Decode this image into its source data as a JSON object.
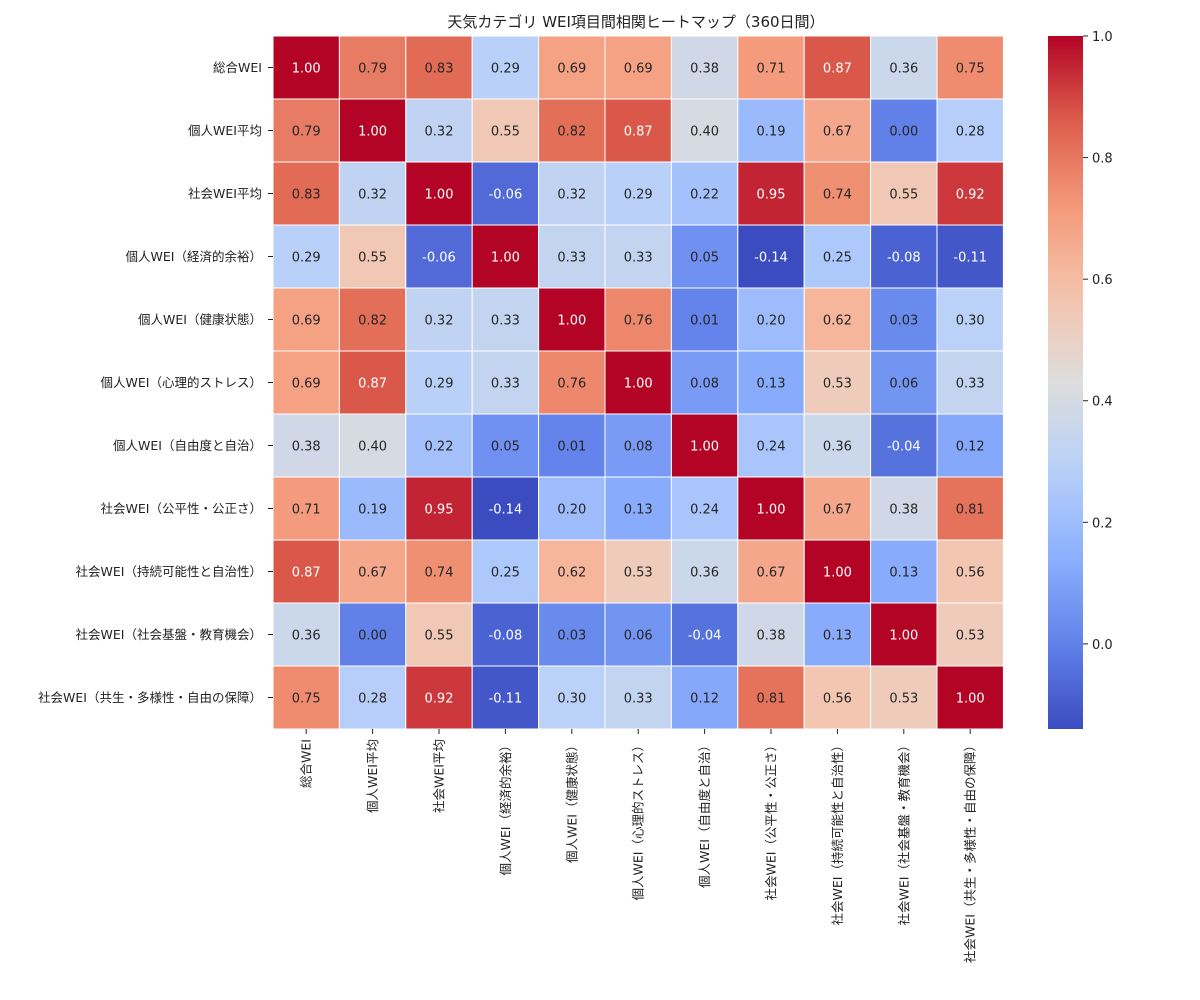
{
  "chart_data": {
    "type": "heatmap",
    "title": "天気カテゴリ WEI項目間相関ヒートマップ（360日間）",
    "labels": [
      "総合WEI",
      "個人WEI平均",
      "社会WEI平均",
      "個人WEI（経済的余裕）",
      "個人WEI（健康状態）",
      "個人WEI（心理的ストレス）",
      "個人WEI（自由度と自治）",
      "社会WEI（公平性・公正さ）",
      "社会WEI（持続可能性と自治性）",
      "社会WEI（社会基盤・教育機会）",
      "社会WEI（共生・多様性・自由の保障）"
    ],
    "matrix": [
      [
        1.0,
        0.79,
        0.83,
        0.29,
        0.69,
        0.69,
        0.38,
        0.71,
        0.87,
        0.36,
        0.75
      ],
      [
        0.79,
        1.0,
        0.32,
        0.55,
        0.82,
        0.87,
        0.4,
        0.19,
        0.67,
        0.0,
        0.28
      ],
      [
        0.83,
        0.32,
        1.0,
        -0.06,
        0.32,
        0.29,
        0.22,
        0.95,
        0.74,
        0.55,
        0.92
      ],
      [
        0.29,
        0.55,
        -0.06,
        1.0,
        0.33,
        0.33,
        0.05,
        -0.14,
        0.25,
        -0.08,
        -0.11
      ],
      [
        0.69,
        0.82,
        0.32,
        0.33,
        1.0,
        0.76,
        0.01,
        0.2,
        0.62,
        0.03,
        0.3
      ],
      [
        0.69,
        0.87,
        0.29,
        0.33,
        0.76,
        1.0,
        0.08,
        0.13,
        0.53,
        0.06,
        0.33
      ],
      [
        0.38,
        0.4,
        0.22,
        0.05,
        0.01,
        0.08,
        1.0,
        0.24,
        0.36,
        -0.04,
        0.12
      ],
      [
        0.71,
        0.19,
        0.95,
        -0.14,
        0.2,
        0.13,
        0.24,
        1.0,
        0.67,
        0.38,
        0.81
      ],
      [
        0.87,
        0.67,
        0.74,
        0.25,
        0.62,
        0.53,
        0.36,
        0.67,
        1.0,
        0.13,
        0.56
      ],
      [
        0.36,
        0.0,
        0.55,
        -0.08,
        0.03,
        0.06,
        -0.04,
        0.38,
        0.13,
        1.0,
        0.53
      ],
      [
        0.75,
        0.28,
        0.92,
        -0.11,
        0.3,
        0.33,
        0.12,
        0.81,
        0.56,
        0.53,
        1.0
      ]
    ],
    "value_range": [
      -0.14,
      1.0
    ],
    "colormap": "coolwarm",
    "colorbar_ticks": [
      0.0,
      0.2,
      0.4,
      0.6,
      0.8,
      1.0
    ],
    "colorbar_tick_labels": [
      "0.0",
      "0.2",
      "0.4",
      "0.6",
      "0.8",
      "1.0"
    ],
    "legend_position": "right"
  }
}
